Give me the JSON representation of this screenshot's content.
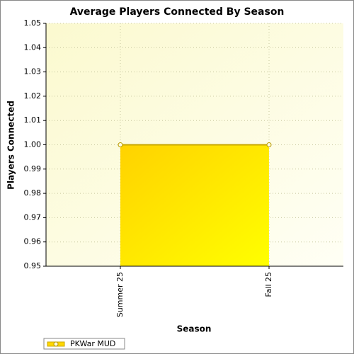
{
  "chart_data": {
    "type": "area",
    "title": "Average Players Connected By Season",
    "x_label": "Season",
    "y_label": "Players Connected",
    "categories": [
      "Summer 25",
      "Fall 25"
    ],
    "series": [
      {
        "name": "PKWar MUD",
        "color": "#ffd700",
        "values": [
          1,
          1
        ]
      }
    ],
    "ylim": [
      0.95,
      1.05
    ],
    "yticks": [
      0.95,
      0.96,
      0.97,
      0.98,
      0.99,
      {
        "value": 1,
        "label": "1.00"
      },
      1.01,
      1.02,
      1.03,
      1.04,
      1.05
    ],
    "grid": true,
    "legend": "bottom-left"
  }
}
